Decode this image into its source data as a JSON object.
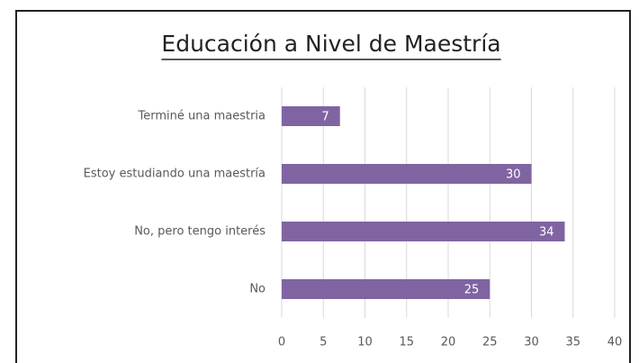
{
  "chart_data": {
    "type": "bar",
    "orientation": "horizontal",
    "title": "Educación a Nivel de Maestría",
    "categories": [
      "Terminé una maestria",
      "Estoy estudiando una maestría",
      "No, pero tengo interés",
      "No"
    ],
    "values": [
      7,
      30,
      34,
      25
    ],
    "color": "#8064a2",
    "xlim": [
      0,
      40
    ],
    "xticks": [
      0,
      5,
      10,
      15,
      20,
      25,
      30,
      35,
      40
    ],
    "grid": true
  }
}
